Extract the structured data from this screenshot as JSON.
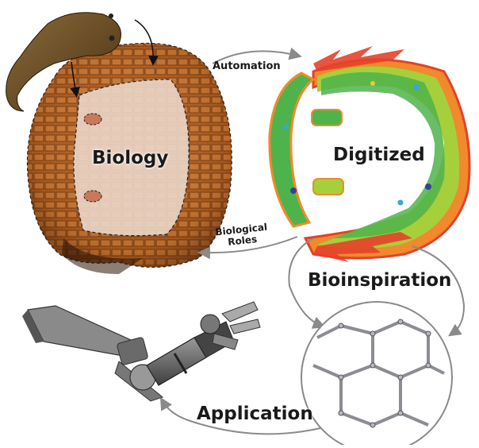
{
  "labels": {
    "biology": "Biology",
    "digitized": "Digitized",
    "automation": "Automation",
    "biological_roles": "Biological\nRoles",
    "bioinspiration": "Bioinspiration",
    "application": "Application"
  },
  "colors": {
    "arrow": "#8a8a8a",
    "shell": "#b8642a",
    "shell_light": "#e8d2c2",
    "organism": "#6b4a22",
    "robot": "#555555",
    "lattice": "#8c8c92",
    "digitized_scale": [
      "#e4412a",
      "#f08a2c",
      "#f5c533",
      "#a6cf3c",
      "#4fb34b",
      "#3aa8c8",
      "#3a3f9c"
    ]
  },
  "icons": [
    "organism-egg-capsule",
    "robot-arm",
    "hexagonal-lattice"
  ]
}
